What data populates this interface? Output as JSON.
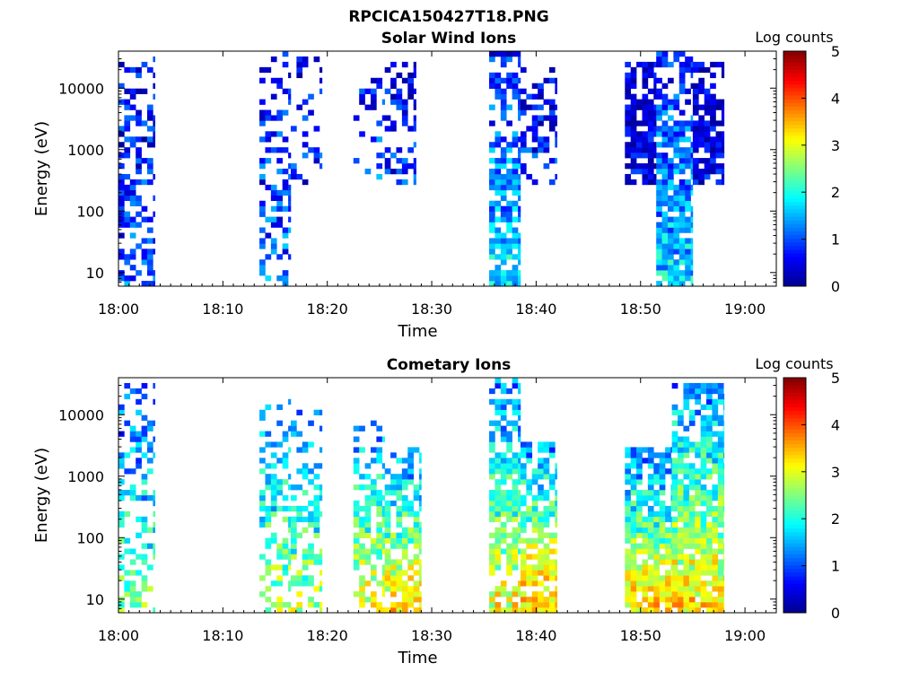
{
  "figure_title": "RPCICA150427T18.PNG",
  "colors": {
    "colormap": [
      "#00008f",
      "#0000ff",
      "#0080ff",
      "#00ffff",
      "#80ff80",
      "#ffff00",
      "#ff8000",
      "#ff0000",
      "#800000"
    ]
  },
  "chart_data": [
    {
      "type": "heatmap",
      "title": "Solar Wind Ions",
      "xlabel": "Time",
      "ylabel": "Energy (eV)",
      "colorbar_label": "Log counts",
      "y_scale": "log",
      "xlim": [
        "18:00",
        "19:03"
      ],
      "ylim": [
        6,
        40000
      ],
      "clim": [
        0,
        5
      ],
      "x_ticks": [
        "18:00",
        "18:10",
        "18:20",
        "18:30",
        "18:40",
        "18:50",
        "19:00"
      ],
      "y_ticks": [
        "10",
        "100",
        "1000",
        "10000"
      ],
      "c_ticks": [
        "0",
        "1",
        "2",
        "3",
        "4",
        "5"
      ],
      "bursts": [
        {
          "start": "18:00",
          "end": "18:03.5",
          "emin": 6,
          "emax": 30000,
          "level": 0.8,
          "density": 0.55
        },
        {
          "start": "18:13.5",
          "end": "18:16.5",
          "emin": 6,
          "emax": 35000,
          "level": 0.9,
          "density": 0.45
        },
        {
          "start": "18:16.5",
          "end": "18:19.5",
          "emin": 300,
          "emax": 35000,
          "level": 0.6,
          "density": 0.3
        },
        {
          "start": "18:22.5",
          "end": "18:25.5",
          "emin": 350,
          "emax": 25000,
          "level": 0.8,
          "density": 0.3
        },
        {
          "start": "18:25.5",
          "end": "18:28.5",
          "emin": 300,
          "emax": 25000,
          "level": 0.6,
          "density": 0.55
        },
        {
          "start": "18:35.5",
          "end": "18:38.5",
          "emin": 6,
          "emax": 35000,
          "level": 1.4,
          "density": 0.75
        },
        {
          "start": "18:38.5",
          "end": "18:42",
          "emin": 300,
          "emax": 20000,
          "level": 0.6,
          "density": 0.5
        },
        {
          "start": "18:48.5",
          "end": "18:51.5",
          "emin": 300,
          "emax": 25000,
          "level": 0.3,
          "density": 0.85
        },
        {
          "start": "18:51.5",
          "end": "18:55",
          "emin": 6,
          "emax": 35000,
          "level": 1.4,
          "density": 0.85
        },
        {
          "start": "18:55",
          "end": "18:58",
          "emin": 300,
          "emax": 25000,
          "level": 0.3,
          "density": 0.75
        }
      ]
    },
    {
      "type": "heatmap",
      "title": "Cometary Ions",
      "xlabel": "Time",
      "ylabel": "Energy (eV)",
      "colorbar_label": "Log counts",
      "y_scale": "log",
      "xlim": [
        "18:00",
        "19:03"
      ],
      "ylim": [
        6,
        40000
      ],
      "clim": [
        0,
        5
      ],
      "x_ticks": [
        "18:00",
        "18:10",
        "18:20",
        "18:30",
        "18:40",
        "18:50",
        "19:00"
      ],
      "y_ticks": [
        "10",
        "100",
        "1000",
        "10000"
      ],
      "c_ticks": [
        "0",
        "1",
        "2",
        "3",
        "4",
        "5"
      ],
      "bursts": [
        {
          "start": "18:00",
          "end": "18:03.5",
          "emin": 6,
          "emax": 30000,
          "level": 2.0,
          "density": 0.45
        },
        {
          "start": "18:13.5",
          "end": "18:16.5",
          "emin": 6,
          "emax": 20000,
          "level": 2.3,
          "density": 0.5
        },
        {
          "start": "18:16.5",
          "end": "18:19.5",
          "emin": 6,
          "emax": 10000,
          "level": 2.3,
          "density": 0.5
        },
        {
          "start": "18:22.5",
          "end": "18:25.5",
          "emin": 6,
          "emax": 8000,
          "level": 2.6,
          "density": 0.6
        },
        {
          "start": "18:25.5",
          "end": "18:29",
          "emin": 6,
          "emax": 2500,
          "level": 2.8,
          "density": 0.75
        },
        {
          "start": "18:35.5",
          "end": "18:38.5",
          "emin": 6,
          "emax": 35000,
          "level": 2.6,
          "density": 0.75
        },
        {
          "start": "18:38.5",
          "end": "18:42",
          "emin": 6,
          "emax": 3000,
          "level": 3.0,
          "density": 0.8
        },
        {
          "start": "18:48.5",
          "end": "18:53",
          "emin": 6,
          "emax": 2500,
          "level": 2.8,
          "density": 0.9
        },
        {
          "start": "18:53",
          "end": "18:58",
          "emin": 6,
          "emax": 30000,
          "level": 2.8,
          "density": 0.9
        }
      ]
    }
  ]
}
